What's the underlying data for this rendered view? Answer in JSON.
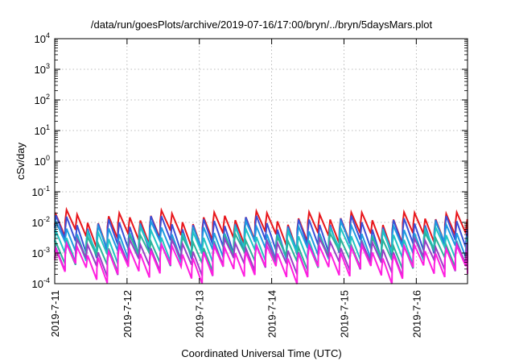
{
  "chart_data": {
    "type": "line",
    "title": "/data/run/goesPlots/archive/2019-07-16/17:00/bryn/../bryn/5daysMars.plot",
    "xlabel": "Coordinated Universal Time (UTC)",
    "ylabel": "cSv/day",
    "y_scale": "log",
    "ylim": [
      0.0001,
      10000
    ],
    "xlim": [
      "2019-07-11 00:00",
      "2019-07-16 17:00"
    ],
    "grid": true,
    "x_ticks": [
      "2019-7-11",
      "2019-7-12",
      "2019-7-13",
      "2019-7-14",
      "2019-7-15",
      "2019-7-16"
    ],
    "y_ticks": [
      {
        "value": 0.0001,
        "base": "10",
        "exp": "-4"
      },
      {
        "value": 0.001,
        "base": "10",
        "exp": "-3"
      },
      {
        "value": 0.01,
        "base": "10",
        "exp": "-2"
      },
      {
        "value": 0.1,
        "base": "10",
        "exp": "-1"
      },
      {
        "value": 1,
        "base": "10",
        "exp": "0"
      },
      {
        "value": 10,
        "base": "10",
        "exp": "1"
      },
      {
        "value": 100,
        "base": "10",
        "exp": "2"
      },
      {
        "value": 1000,
        "base": "10",
        "exp": "3"
      },
      {
        "value": 10000,
        "base": "10",
        "exp": "4"
      }
    ],
    "sawtooth_period_hours": 3.5,
    "series": [
      {
        "color": "#e8161b",
        "peak": 0.015,
        "trough": 0.003
      },
      {
        "color": "#3a4fd8",
        "peak": 0.01,
        "trough": 0.0015
      },
      {
        "color": "#1f9be0",
        "peak": 0.006,
        "trough": 0.0012
      },
      {
        "color": "#21c4c4",
        "peak": 0.004,
        "trough": 0.0008
      },
      {
        "color": "#2bb39a",
        "peak": 0.0025,
        "trough": 0.0006
      },
      {
        "color": "#9a3fc6",
        "peak": 0.0018,
        "trough": 0.0004
      },
      {
        "color": "#ff1ee0",
        "peak": 0.0012,
        "trough": 0.00025
      }
    ]
  }
}
